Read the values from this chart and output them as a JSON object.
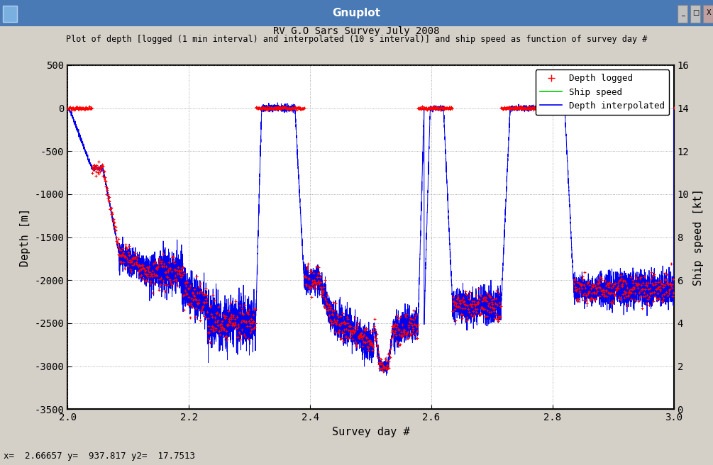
{
  "title1": "RV G.O Sars Survey July 2008",
  "title2": "Plot of depth [logged (1 min interval) and interpolated (10 s interval)] and ship speed as function of survey day #",
  "xlabel": "Survey day #",
  "ylabel_left": "Depth [m]",
  "ylabel_right": "Ship speed [kt]",
  "ylim_left": [
    -3500,
    500
  ],
  "ylim_right": [
    0,
    16
  ],
  "xlim": [
    2.0,
    3.0
  ],
  "yticks_left": [
    500,
    0,
    -500,
    -1000,
    -1500,
    -2000,
    -2500,
    -3000,
    -3500
  ],
  "yticks_right": [
    0,
    2,
    4,
    6,
    8,
    10,
    12,
    14,
    16
  ],
  "xticks": [
    2.0,
    2.2,
    2.4,
    2.6,
    2.8,
    3.0
  ],
  "plot_bg": "#ffffff",
  "window_title": "Gnuplot",
  "window_bg": "#4a7ab5",
  "status_bar": "x=  2.66657 y=  937.817 y2=  17.7513"
}
